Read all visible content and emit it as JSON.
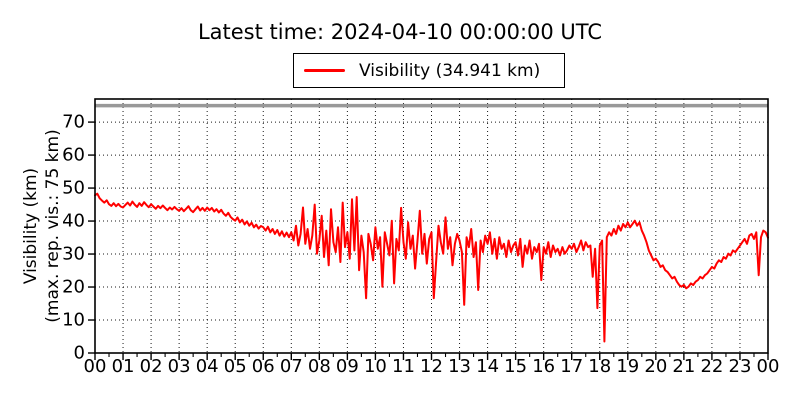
{
  "figure": {
    "title": "Latest time: 2024-04-10 00:00:00 UTC",
    "legend": {
      "label": "Visibility (34.941 km)"
    },
    "colors": {
      "line": "#ff0000",
      "max_vis_line": "#999999",
      "frame": "#000000",
      "grid": "#000000",
      "text": "#000000",
      "background": "#ffffff"
    }
  },
  "chart_data": {
    "type": "line",
    "title": "Latest time: 2024-04-10 00:00:00 UTC",
    "ylabel_line1": "Visibility (km)",
    "ylabel_line2": "(max. rep. vis.: 75 km)",
    "xlabel": "",
    "x_tick_labels": [
      "00",
      "01",
      "02",
      "03",
      "04",
      "05",
      "06",
      "07",
      "08",
      "09",
      "10",
      "11",
      "12",
      "13",
      "14",
      "15",
      "16",
      "17",
      "18",
      "19",
      "20",
      "21",
      "22",
      "23",
      "00"
    ],
    "y_ticks": [
      0,
      10,
      20,
      30,
      40,
      50,
      60,
      70
    ],
    "ylim": [
      0,
      77
    ],
    "xlim_hours": [
      0,
      24
    ],
    "grid": true,
    "legend_position": "top-center-outside",
    "max_reported_visibility_km": 75,
    "latest_value_km": 34.941,
    "sample_interval_minutes": 5,
    "series": [
      {
        "name": "Visibility",
        "color": "#ff0000",
        "values": [
          47.8,
          48.3,
          46.9,
          46.2,
          45.6,
          46.3,
          45.1,
          44.6,
          45.4,
          44.5,
          45.2,
          44.4,
          44.1,
          44.9,
          45.6,
          44.7,
          45.9,
          45.0,
          44.3,
          45.4,
          44.6,
          45.7,
          44.9,
          44.2,
          45.1,
          44.4,
          43.7,
          44.6,
          43.9,
          44.7,
          44.0,
          43.3,
          44.1,
          43.5,
          44.3,
          43.6,
          43.1,
          43.9,
          43.0,
          43.7,
          44.5,
          43.3,
          42.7,
          43.6,
          44.4,
          43.2,
          44.0,
          43.1,
          44.1,
          43.3,
          44.0,
          42.9,
          43.6,
          42.6,
          43.4,
          42.3,
          41.6,
          42.5,
          41.3,
          40.6,
          40.1,
          41.1,
          39.6,
          40.4,
          39.0,
          39.9,
          38.6,
          39.5,
          38.1,
          38.9,
          37.7,
          38.5,
          38.1,
          37.1,
          38.3,
          36.6,
          37.6,
          36.1,
          37.3,
          35.6,
          36.9,
          35.3,
          36.5,
          35.1,
          36.6,
          34.1,
          38.6,
          32.6,
          36.1,
          44.1,
          33.1,
          37.6,
          31.6,
          35.6,
          45.0,
          30.1,
          34.1,
          41.6,
          29.1,
          37.1,
          26.6,
          43.6,
          33.6,
          30.6,
          38.1,
          27.6,
          45.6,
          32.1,
          36.6,
          28.6,
          46.6,
          31.1,
          47.3,
          25.1,
          35.6,
          30.6,
          16.6,
          36.1,
          33.1,
          28.1,
          38.1,
          31.6,
          35.1,
          20.1,
          36.6,
          33.1,
          29.6,
          40.1,
          21.1,
          34.6,
          31.1,
          44.0,
          33.6,
          28.6,
          39.6,
          31.6,
          35.6,
          25.6,
          34.1,
          43.1,
          30.1,
          36.1,
          27.1,
          34.6,
          36.6,
          16.6,
          28.1,
          38.6,
          33.6,
          30.1,
          41.1,
          31.6,
          35.1,
          26.6,
          33.1,
          36.1,
          34.1,
          30.6,
          14.6,
          35.1,
          32.1,
          37.6,
          29.1,
          33.6,
          19.1,
          34.1,
          30.6,
          35.6,
          33.1,
          36.6,
          30.1,
          34.6,
          28.6,
          35.1,
          31.6,
          33.1,
          29.1,
          34.1,
          30.6,
          32.6,
          33.6,
          29.6,
          34.6,
          26.1,
          32.6,
          30.1,
          34.1,
          28.6,
          32.1,
          30.6,
          33.1,
          22.1,
          32.1,
          30.1,
          33.6,
          29.1,
          32.6,
          30.6,
          31.6,
          29.6,
          32.1,
          30.1,
          31.1,
          32.6,
          31.6,
          33.1,
          30.6,
          32.1,
          34.1,
          31.1,
          33.6,
          32.1,
          32.6,
          23.1,
          31.6,
          13.6,
          32.6,
          34.1,
          3.5,
          35.1,
          36.6,
          35.6,
          37.6,
          36.1,
          38.6,
          37.1,
          39.1,
          38.1,
          39.6,
          38.1,
          39.1,
          40.1,
          38.6,
          39.6,
          37.1,
          35.6,
          33.6,
          31.1,
          29.6,
          28.1,
          28.6,
          27.6,
          26.1,
          26.6,
          25.1,
          24.6,
          23.6,
          22.6,
          23.1,
          21.6,
          20.6,
          20.1,
          20.6,
          19.6,
          20.1,
          21.1,
          20.6,
          21.6,
          22.1,
          23.1,
          22.6,
          23.6,
          24.1,
          25.1,
          26.1,
          25.6,
          27.1,
          28.1,
          27.6,
          29.1,
          28.6,
          30.1,
          29.6,
          31.1,
          30.6,
          31.6,
          32.6,
          33.6,
          34.6,
          33.1,
          35.6,
          36.1,
          34.6,
          36.6,
          23.6,
          35.1,
          37.1,
          36.6,
          34.941
        ]
      }
    ]
  }
}
